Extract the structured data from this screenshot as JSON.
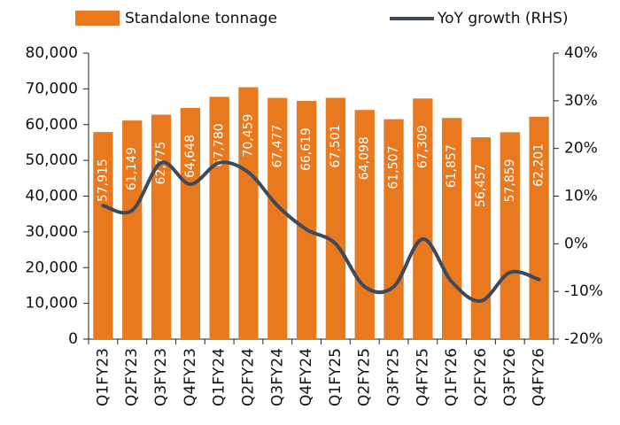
{
  "chart_data": {
    "type": "bar-line",
    "categories": [
      "Q1FY23",
      "Q2FY23",
      "Q3FY23",
      "Q4FY23",
      "Q1FY24",
      "Q2FY24",
      "Q3FY24",
      "Q4FY24",
      "Q1FY25",
      "Q2FY25",
      "Q3FY25",
      "Q4FY25",
      "Q1FY26",
      "Q2FY26",
      "Q3FY26",
      "Q4FY26"
    ],
    "series": [
      {
        "name": "Standalone tonnage",
        "type": "bar",
        "color": "#e8791f",
        "values": [
          57915,
          61149,
          62775,
          64648,
          67780,
          70459,
          67477,
          66619,
          67501,
          64098,
          61507,
          67309,
          61857,
          56457,
          57859,
          62201
        ],
        "value_labels": [
          "57,915",
          "61,149",
          "62,775",
          "64,648",
          "67,780",
          "70,459",
          "67,477",
          "66,619",
          "67,501",
          "64,098",
          "61,507",
          "67,309",
          "61,857",
          "56,457",
          "57,859",
          "62,201"
        ]
      },
      {
        "name": "YoY growth (RHS)",
        "type": "line",
        "axis": "y2",
        "color": "#3e4a5b",
        "values": [
          8,
          7,
          17,
          12.5,
          17,
          15,
          8,
          3,
          0,
          -9,
          -9,
          1,
          -8,
          -12,
          -6,
          -7.5
        ]
      }
    ],
    "ylim": [
      0,
      80000
    ],
    "yticks": [
      0,
      {
        "value": 10000,
        "label": "10,000"
      },
      {
        "value": 20000,
        "label": "20,000"
      },
      {
        "value": 30000,
        "label": "30,000"
      },
      {
        "value": 40000,
        "label": "40,000"
      },
      {
        "value": 50000,
        "label": "50,000"
      },
      {
        "value": 60000,
        "label": "60,000"
      },
      {
        "value": 70000,
        "label": "70,000"
      },
      {
        "value": 80000,
        "label": "80,000"
      }
    ],
    "y2lim": [
      -20,
      40
    ],
    "y2ticks": [
      {
        "value": -20,
        "label": "-20%"
      },
      {
        "value": -10,
        "label": "-10%"
      },
      {
        "value": 0,
        "label": "0%"
      },
      {
        "value": 10,
        "label": "10%"
      },
      {
        "value": 20,
        "label": "20%"
      },
      {
        "value": 30,
        "label": "30%"
      },
      {
        "value": 40,
        "label": "40%"
      }
    ],
    "legend": "top"
  }
}
